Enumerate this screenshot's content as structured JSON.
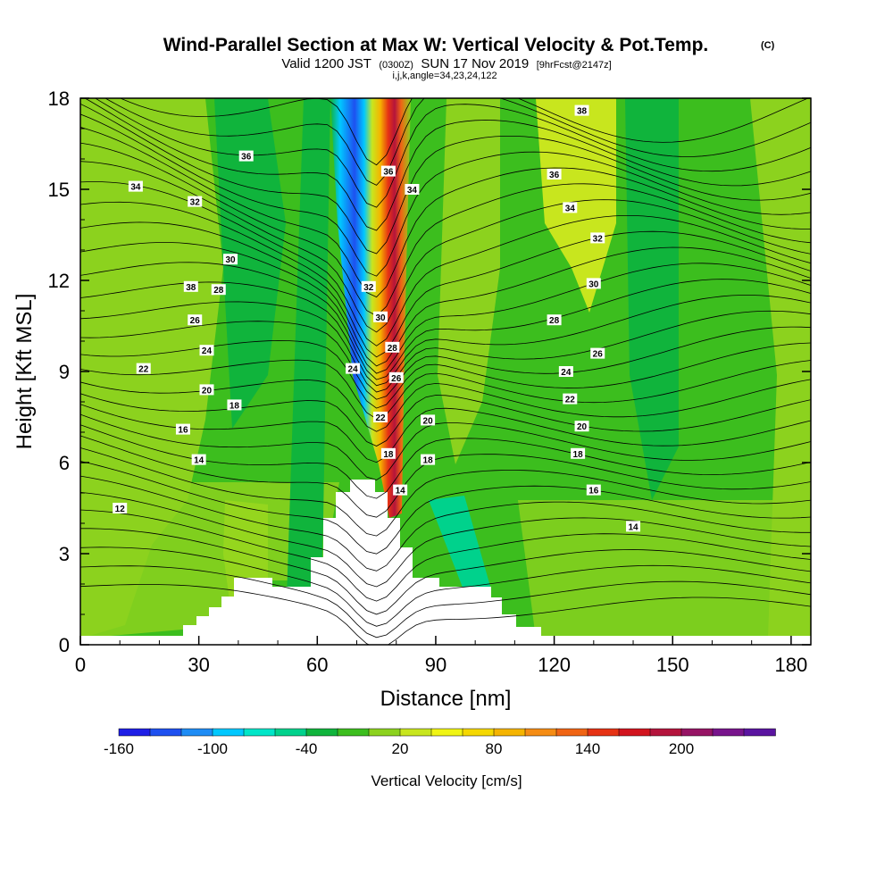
{
  "chart_data": {
    "type": "heatmap",
    "title": "Wind-Parallel Section at Max W: Vertical Velocity & Pot.Temp.",
    "title_mark": "(C)",
    "subtitle_main_a": "Valid 1200 JST",
    "subtitle_small_a": "(0300Z)",
    "subtitle_main_b": "SUN 17 Nov 2019",
    "subtitle_small_b": "[9hrFcst@2147z]",
    "subtitle_line2": "i,j,k,angle=34,23,24,122",
    "xlabel": "Distance [nm]",
    "ylabel": "Height [Kft MSL]",
    "xlim": [
      0,
      185
    ],
    "ylim": [
      0,
      18
    ],
    "x_ticks": [
      "0",
      "30",
      "60",
      "90",
      "120",
      "150",
      "180"
    ],
    "y_ticks": [
      "0",
      "3",
      "6",
      "9",
      "12",
      "15",
      "18"
    ],
    "colorbar": {
      "label": "Vertical Velocity [cm/s]",
      "tick_labels": [
        "-160",
        "-100",
        "-40",
        "20",
        "80",
        "140",
        "200"
      ],
      "colors": [
        "#1e1ee6",
        "#1e50f0",
        "#1e8cf5",
        "#00c8ff",
        "#00e6c8",
        "#00d28c",
        "#10b43c",
        "#3cbe1e",
        "#8cd21e",
        "#c8e61e",
        "#f0f514",
        "#f5d800",
        "#f5b400",
        "#f58c14",
        "#f06414",
        "#e63214",
        "#d2141e",
        "#b4143c",
        "#961464",
        "#78148c",
        "#5a14a0"
      ]
    },
    "potential_temperature_labels": [
      {
        "x": 28,
        "y": 11.8,
        "label": "38"
      },
      {
        "x": 42,
        "y": 16.1,
        "label": "36"
      },
      {
        "x": 14,
        "y": 15.1,
        "label": "34"
      },
      {
        "x": 29,
        "y": 14.6,
        "label": "32"
      },
      {
        "x": 38,
        "y": 12.7,
        "label": "30"
      },
      {
        "x": 35,
        "y": 11.7,
        "label": "28"
      },
      {
        "x": 29,
        "y": 10.7,
        "label": "26"
      },
      {
        "x": 32,
        "y": 9.7,
        "label": "24"
      },
      {
        "x": 16,
        "y": 9.1,
        "label": "22"
      },
      {
        "x": 32,
        "y": 8.4,
        "label": "20"
      },
      {
        "x": 39,
        "y": 7.9,
        "label": "18"
      },
      {
        "x": 26,
        "y": 7.1,
        "label": "16"
      },
      {
        "x": 30,
        "y": 6.1,
        "label": "14"
      },
      {
        "x": 10,
        "y": 4.5,
        "label": "12"
      },
      {
        "x": 73,
        "y": 11.8,
        "label": "32"
      },
      {
        "x": 76,
        "y": 10.8,
        "label": "30"
      },
      {
        "x": 79,
        "y": 9.8,
        "label": "28"
      },
      {
        "x": 80,
        "y": 8.8,
        "label": "26"
      },
      {
        "x": 69,
        "y": 9.1,
        "label": "24"
      },
      {
        "x": 76,
        "y": 7.5,
        "label": "22"
      },
      {
        "x": 88,
        "y": 7.4,
        "label": "20"
      },
      {
        "x": 78,
        "y": 6.3,
        "label": "18"
      },
      {
        "x": 88,
        "y": 6.1,
        "label": "18"
      },
      {
        "x": 81,
        "y": 5.1,
        "label": "14"
      },
      {
        "x": 78,
        "y": 15.6,
        "label": "36"
      },
      {
        "x": 84,
        "y": 15.0,
        "label": "34"
      },
      {
        "x": 127,
        "y": 17.6,
        "label": "38"
      },
      {
        "x": 120,
        "y": 15.5,
        "label": "36"
      },
      {
        "x": 124,
        "y": 14.4,
        "label": "34"
      },
      {
        "x": 131,
        "y": 13.4,
        "label": "32"
      },
      {
        "x": 130,
        "y": 11.9,
        "label": "30"
      },
      {
        "x": 120,
        "y": 10.7,
        "label": "28"
      },
      {
        "x": 131,
        "y": 9.6,
        "label": "26"
      },
      {
        "x": 123,
        "y": 9.0,
        "label": "24"
      },
      {
        "x": 124,
        "y": 8.1,
        "label": "22"
      },
      {
        "x": 127,
        "y": 7.2,
        "label": "20"
      },
      {
        "x": 126,
        "y": 6.3,
        "label": "18"
      },
      {
        "x": 130,
        "y": 5.1,
        "label": "16"
      },
      {
        "x": 140,
        "y": 3.9,
        "label": "14"
      }
    ]
  }
}
